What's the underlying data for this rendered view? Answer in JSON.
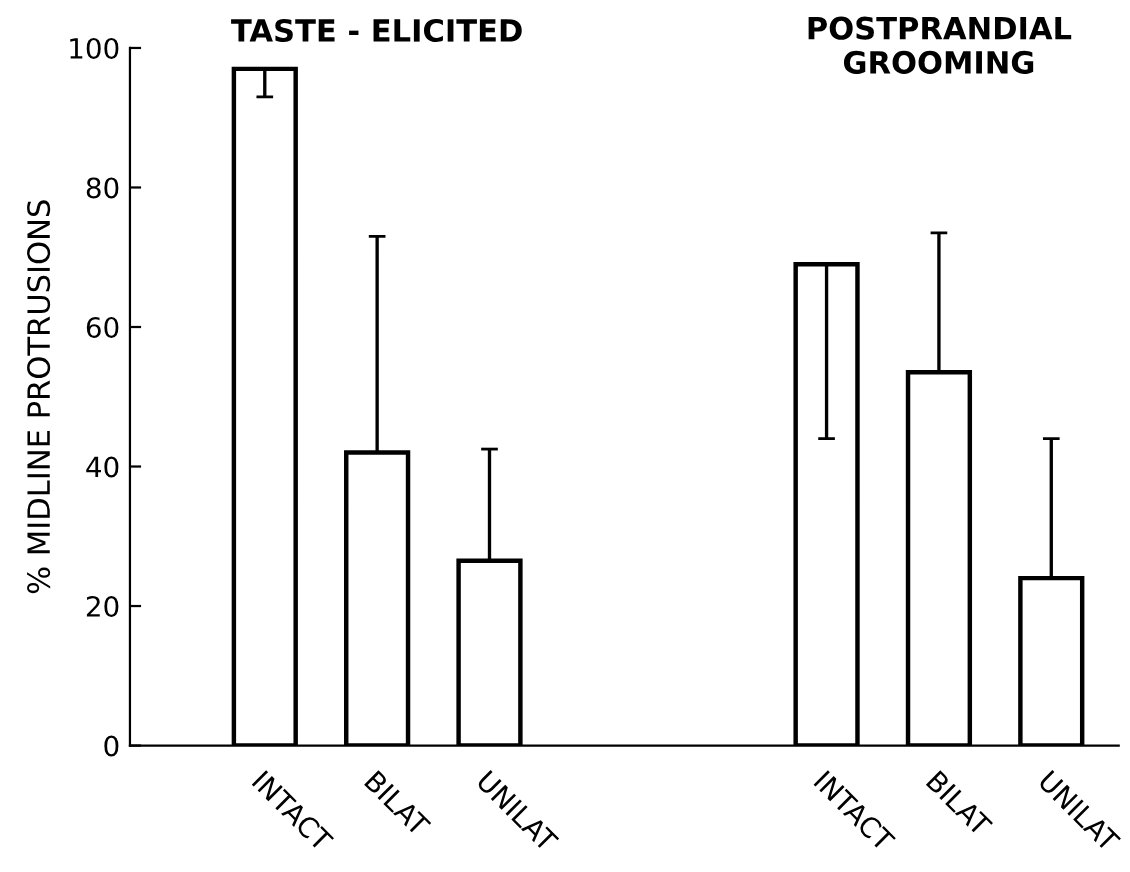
{
  "chart_data": {
    "type": "bar",
    "ylabel": "% MIDLINE PROTRUSIONS",
    "categories": [
      "INTACT",
      "BILAT",
      "UNILAT",
      null,
      null,
      "INTACT",
      "BILAT",
      "UNILAT"
    ],
    "values": [
      97,
      42,
      26.5,
      null,
      null,
      69,
      53.5,
      24
    ],
    "errors": [
      [
        93,
        97
      ],
      [
        42,
        73
      ],
      [
        26.5,
        42.5
      ],
      null,
      null,
      [
        44,
        69
      ],
      [
        53.5,
        73.5
      ],
      [
        24,
        44
      ]
    ],
    "color": "#ffffff",
    "ylim": [
      0,
      100
    ],
    "yticks": [
      0,
      20,
      40,
      60,
      80,
      100
    ],
    "grid": false,
    "legend": false,
    "annotations": [
      "TASTE - ELICITED",
      "POSTPRANDIAL\nGROOMING"
    ]
  }
}
